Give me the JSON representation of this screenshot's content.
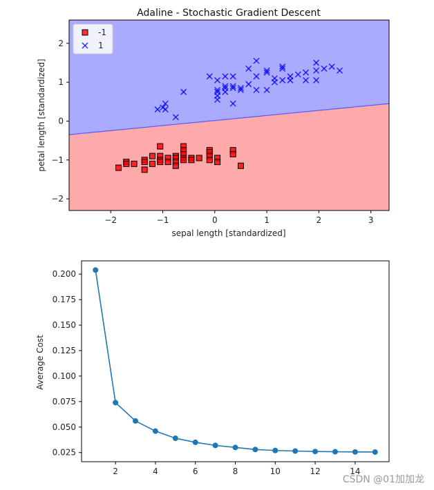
{
  "watermark": "CSDN @01加加龙",
  "chart_data": [
    {
      "type": "scatter",
      "title": "Adaline - Stochastic Gradient Descent",
      "xlabel": "sepal length [standardized]",
      "ylabel": "petal length [standardized]",
      "xlim": [
        -2.8,
        3.35
      ],
      "ylim": [
        -2.3,
        2.6
      ],
      "xticks": [
        -2,
        -1,
        0,
        1,
        2,
        3
      ],
      "yticks": [
        -2,
        -1,
        0,
        1,
        2
      ],
      "xtick_labels": [
        "−2",
        "−1",
        "0",
        "1",
        "2",
        "3"
      ],
      "ytick_labels": [
        "−2",
        "−1",
        "0",
        "1",
        "2"
      ],
      "decision_boundary": {
        "x": [
          -2.8,
          3.35
        ],
        "y": [
          -0.35,
          0.45
        ]
      },
      "region_colors": {
        "neg": "#ffaaaa",
        "pos": "#aaaaff",
        "boundary": "#5555ff"
      },
      "legend": {
        "position": "top-left"
      },
      "series": [
        {
          "name": "-1",
          "marker": "square",
          "color": "#ff0000",
          "points": [
            [
              -1.85,
              -1.2
            ],
            [
              -1.7,
              -1.05
            ],
            [
              -1.7,
              -1.1
            ],
            [
              -1.55,
              -1.1
            ],
            [
              -1.35,
              -1.0
            ],
            [
              -1.35,
              -1.25
            ],
            [
              -1.35,
              -1.05
            ],
            [
              -1.2,
              -0.9
            ],
            [
              -1.2,
              -1.1
            ],
            [
              -1.05,
              -0.65
            ],
            [
              -1.05,
              -0.9
            ],
            [
              -1.05,
              -1.0
            ],
            [
              -1.05,
              -1.05
            ],
            [
              -0.9,
              -0.95
            ],
            [
              -0.9,
              -1.05
            ],
            [
              -0.75,
              -0.9
            ],
            [
              -0.75,
              -0.95
            ],
            [
              -0.75,
              -1.05
            ],
            [
              -0.75,
              -1.15
            ],
            [
              -0.6,
              -0.65
            ],
            [
              -0.6,
              -0.75
            ],
            [
              -0.6,
              -0.85
            ],
            [
              -0.6,
              -0.95
            ],
            [
              -0.6,
              -1.0
            ],
            [
              -0.45,
              -0.95
            ],
            [
              -0.45,
              -1.0
            ],
            [
              -0.3,
              -0.95
            ],
            [
              -0.1,
              -0.75
            ],
            [
              -0.1,
              -0.8
            ],
            [
              -0.1,
              -0.9
            ],
            [
              -0.1,
              -1.0
            ],
            [
              0.05,
              -0.95
            ],
            [
              0.05,
              -1.05
            ],
            [
              0.35,
              -0.75
            ],
            [
              0.35,
              -0.85
            ],
            [
              0.5,
              -1.15
            ]
          ]
        },
        {
          "name": "1",
          "marker": "x",
          "color": "#0000ff",
          "points": [
            [
              -1.1,
              0.3
            ],
            [
              -1.0,
              0.35
            ],
            [
              -0.95,
              0.3
            ],
            [
              -0.95,
              0.45
            ],
            [
              -0.75,
              0.1
            ],
            [
              -0.6,
              0.75
            ],
            [
              -0.1,
              1.15
            ],
            [
              0.05,
              0.55
            ],
            [
              0.05,
              0.65
            ],
            [
              0.05,
              0.75
            ],
            [
              0.05,
              0.8
            ],
            [
              0.05,
              1.05
            ],
            [
              0.2,
              0.75
            ],
            [
              0.2,
              0.85
            ],
            [
              0.2,
              0.9
            ],
            [
              0.2,
              1.15
            ],
            [
              0.35,
              0.45
            ],
            [
              0.35,
              0.85
            ],
            [
              0.35,
              0.9
            ],
            [
              0.35,
              1.15
            ],
            [
              0.5,
              0.8
            ],
            [
              0.5,
              0.85
            ],
            [
              0.65,
              0.95
            ],
            [
              0.65,
              1.35
            ],
            [
              0.8,
              0.8
            ],
            [
              0.8,
              1.15
            ],
            [
              0.8,
              1.55
            ],
            [
              1.0,
              0.8
            ],
            [
              1.0,
              1.25
            ],
            [
              1.0,
              1.3
            ],
            [
              1.15,
              1.0
            ],
            [
              1.15,
              1.1
            ],
            [
              1.3,
              1.05
            ],
            [
              1.3,
              1.35
            ],
            [
              1.3,
              1.4
            ],
            [
              1.45,
              1.05
            ],
            [
              1.45,
              1.15
            ],
            [
              1.6,
              1.2
            ],
            [
              1.75,
              1.05
            ],
            [
              1.75,
              1.25
            ],
            [
              1.95,
              1.05
            ],
            [
              1.95,
              1.3
            ],
            [
              1.95,
              1.5
            ],
            [
              2.1,
              1.35
            ],
            [
              2.25,
              1.4
            ],
            [
              2.4,
              1.3
            ]
          ]
        }
      ]
    },
    {
      "type": "line",
      "title": "",
      "xlabel": "",
      "ylabel": "Average Cost",
      "xlim": [
        0.3,
        15.7
      ],
      "ylim": [
        0.016,
        0.213
      ],
      "xticks": [
        2,
        4,
        6,
        8,
        10,
        12,
        14
      ],
      "yticks": [
        0.025,
        0.05,
        0.075,
        0.1,
        0.125,
        0.15,
        0.175,
        0.2
      ],
      "xtick_labels": [
        "2",
        "4",
        "6",
        "8",
        "10",
        "12",
        "14"
      ],
      "ytick_labels": [
        "0.025",
        "0.050",
        "0.075",
        "0.100",
        "0.125",
        "0.150",
        "0.175",
        "0.200"
      ],
      "color": "#1f77b4",
      "x": [
        1,
        2,
        3,
        4,
        5,
        6,
        7,
        8,
        9,
        10,
        11,
        12,
        13,
        14,
        15
      ],
      "y": [
        0.204,
        0.074,
        0.056,
        0.046,
        0.039,
        0.035,
        0.032,
        0.03,
        0.028,
        0.027,
        0.0265,
        0.026,
        0.0258,
        0.0256,
        0.0255
      ]
    }
  ]
}
